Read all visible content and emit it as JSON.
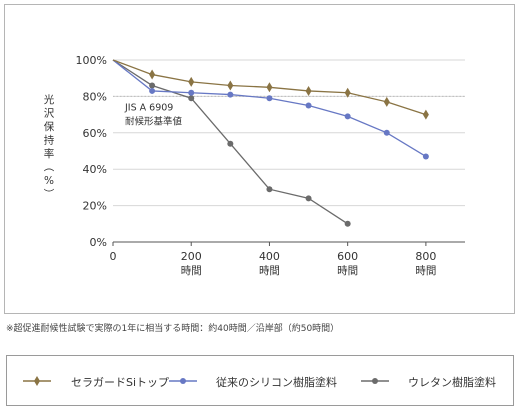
{
  "chart_data": {
    "type": "line",
    "ylabel": "光沢保持率（%）",
    "x": [
      0,
      100,
      200,
      300,
      400,
      500,
      600,
      700,
      800
    ],
    "xlim": [
      0,
      900
    ],
    "ylim": [
      0,
      100
    ],
    "xticks": [
      {
        "value": 0,
        "label": "0",
        "unit": ""
      },
      {
        "value": 200,
        "label": "200",
        "unit": "時間"
      },
      {
        "value": 400,
        "label": "400",
        "unit": "時間"
      },
      {
        "value": 600,
        "label": "600",
        "unit": "時間"
      },
      {
        "value": 800,
        "label": "800",
        "unit": "時間"
      }
    ],
    "yticks": [
      {
        "value": 0,
        "label": "0%"
      },
      {
        "value": 20,
        "label": "20%"
      },
      {
        "value": 40,
        "label": "40%"
      },
      {
        "value": 60,
        "label": "60%"
      },
      {
        "value": 80,
        "label": "80%"
      },
      {
        "value": 100,
        "label": "100%"
      }
    ],
    "reference_line": {
      "y": 80,
      "label_line1": "JIS A 6909",
      "label_line2": "耐候形基準値",
      "color": "#bdbdbd"
    },
    "series": [
      {
        "name": "セラガードSiトップ",
        "color": "#8a7444",
        "marker": "diamond",
        "points": [
          [
            0,
            100
          ],
          [
            100,
            92
          ],
          [
            200,
            88
          ],
          [
            300,
            86
          ],
          [
            400,
            85
          ],
          [
            500,
            83
          ],
          [
            600,
            82
          ],
          [
            700,
            77
          ],
          [
            800,
            70
          ]
        ]
      },
      {
        "name": "従来のシリコン樹脂塗料",
        "color": "#6778c4",
        "marker": "circle",
        "points": [
          [
            0,
            100
          ],
          [
            100,
            83
          ],
          [
            200,
            82
          ],
          [
            300,
            81
          ],
          [
            400,
            79
          ],
          [
            500,
            75
          ],
          [
            600,
            69
          ],
          [
            700,
            60
          ],
          [
            800,
            47
          ]
        ]
      },
      {
        "name": "ウレタン樹脂塗料",
        "color": "#6b6b6b",
        "marker": "circle",
        "points": [
          [
            0,
            100
          ],
          [
            100,
            86
          ],
          [
            200,
            79
          ],
          [
            300,
            54
          ],
          [
            400,
            29
          ],
          [
            500,
            24
          ],
          [
            600,
            10
          ]
        ]
      }
    ]
  },
  "footnote": "※超促進耐候性試験で実際の1年に相当する時間：約40時間／沿岸部（約50時間）"
}
